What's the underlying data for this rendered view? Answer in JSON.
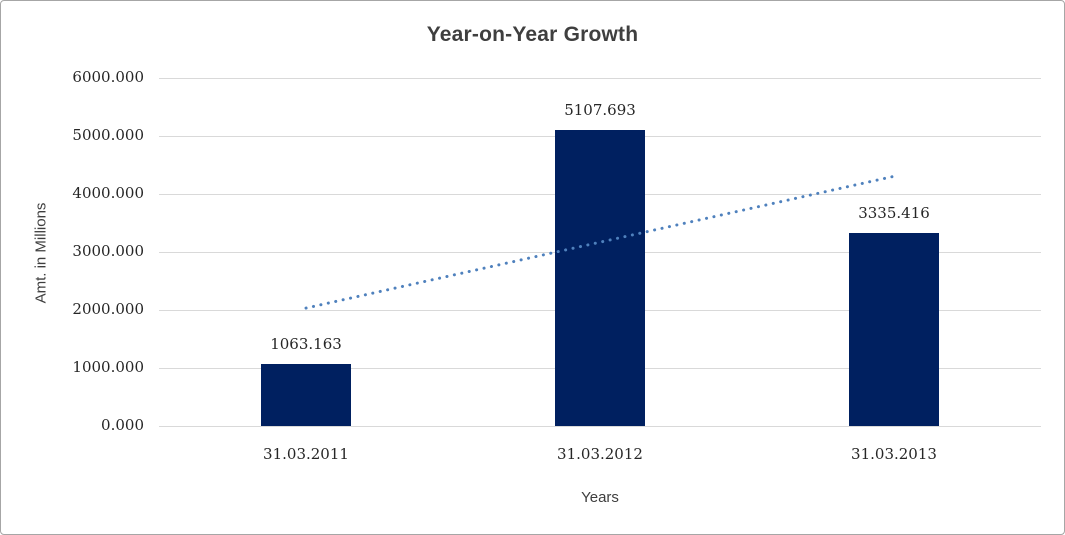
{
  "window": {
    "background_color": "#ffffff",
    "border_color": "#a6a6a6"
  },
  "chart_data": {
    "type": "bar",
    "title": "Year-on-Year Growth",
    "xlabel": "Years",
    "ylabel": "Amt. in Millions",
    "categories": [
      "31.03.2011",
      "31.03.2012",
      "31.03.2013"
    ],
    "values": [
      1063.163,
      5107.693,
      3335.416
    ],
    "data_labels": [
      "1063.163",
      "5107.693",
      "3335.416"
    ],
    "y_ticks": [
      "6000.000",
      "5000.000",
      "4000.000",
      "3000.000",
      "2000.000",
      "1000.000",
      "0.000"
    ],
    "ylim": [
      0,
      6000
    ],
    "y_tick_step": 1000,
    "grid": true,
    "legend": "none",
    "bar_color": "#002060",
    "gridline_color": "#d9d9d9",
    "label_color": "#262626",
    "title_color": "#3f3f3f",
    "trendline": {
      "type": "linear",
      "style": "dotted",
      "color": "#4f81bd",
      "start_value": 2033,
      "end_value": 4305
    }
  }
}
